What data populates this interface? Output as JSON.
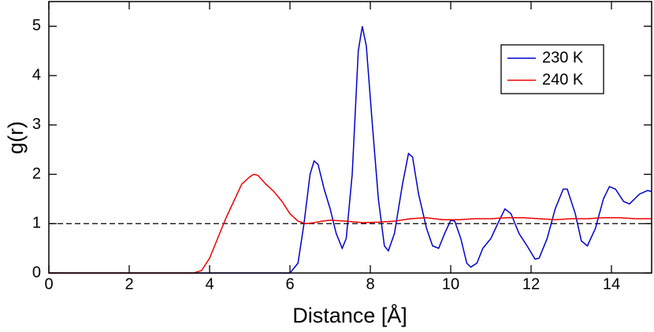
{
  "chart_data": {
    "type": "line",
    "x_label": "Distance  [Å]",
    "y_label": "g(r)",
    "xlim": [
      0,
      15
    ],
    "ylim": [
      0,
      5.5
    ],
    "xticks": [
      0,
      2,
      4,
      6,
      8,
      10,
      12,
      14
    ],
    "yticks": [
      0,
      1,
      2,
      3,
      4,
      5
    ],
    "hline": 1,
    "legend": "upper right",
    "series": [
      {
        "name": "230 K",
        "color": "#0000cc",
        "x": [
          0,
          6.0,
          6.2,
          6.35,
          6.5,
          6.6,
          6.7,
          6.85,
          7.0,
          7.15,
          7.3,
          7.4,
          7.55,
          7.7,
          7.8,
          7.9,
          8.05,
          8.2,
          8.35,
          8.45,
          8.6,
          8.8,
          8.95,
          9.05,
          9.2,
          9.4,
          9.55,
          9.7,
          9.85,
          10.0,
          10.1,
          10.25,
          10.4,
          10.5,
          10.65,
          10.8,
          11.0,
          11.2,
          11.35,
          11.5,
          11.7,
          11.9,
          12.1,
          12.2,
          12.4,
          12.6,
          12.8,
          12.9,
          13.1,
          13.25,
          13.4,
          13.6,
          13.8,
          13.95,
          14.1,
          14.3,
          14.45,
          14.7,
          14.9,
          15.0
        ],
        "values": [
          0,
          0,
          0.2,
          1.0,
          2.0,
          2.27,
          2.2,
          1.7,
          1.3,
          0.8,
          0.5,
          0.7,
          2.0,
          4.5,
          5.0,
          4.6,
          3.0,
          1.5,
          0.55,
          0.45,
          0.8,
          1.8,
          2.42,
          2.35,
          1.6,
          0.9,
          0.55,
          0.5,
          0.8,
          1.07,
          1.05,
          0.7,
          0.2,
          0.12,
          0.2,
          0.5,
          0.7,
          1.05,
          1.3,
          1.2,
          0.8,
          0.55,
          0.28,
          0.3,
          0.7,
          1.3,
          1.7,
          1.7,
          1.2,
          0.65,
          0.55,
          0.9,
          1.5,
          1.75,
          1.7,
          1.45,
          1.4,
          1.6,
          1.67,
          1.65
        ]
      },
      {
        "name": "240 K",
        "color": "#ee0000",
        "x": [
          0,
          3.6,
          3.8,
          4.0,
          4.2,
          4.4,
          4.6,
          4.8,
          5.0,
          5.1,
          5.2,
          5.4,
          5.6,
          5.8,
          6.0,
          6.2,
          6.4,
          6.6,
          6.8,
          7.0,
          7.4,
          7.8,
          8.2,
          8.6,
          9.0,
          9.4,
          9.8,
          10.2,
          10.6,
          11.0,
          11.4,
          11.8,
          12.2,
          12.6,
          13.0,
          13.4,
          13.8,
          14.2,
          14.6,
          15.0
        ],
        "values": [
          0,
          0,
          0.05,
          0.3,
          0.7,
          1.1,
          1.45,
          1.8,
          1.95,
          2.0,
          1.98,
          1.8,
          1.65,
          1.45,
          1.2,
          1.05,
          1.0,
          1.02,
          1.05,
          1.07,
          1.05,
          1.02,
          1.03,
          1.05,
          1.1,
          1.12,
          1.08,
          1.08,
          1.1,
          1.1,
          1.12,
          1.12,
          1.1,
          1.08,
          1.1,
          1.1,
          1.12,
          1.12,
          1.1,
          1.1
        ]
      }
    ]
  }
}
